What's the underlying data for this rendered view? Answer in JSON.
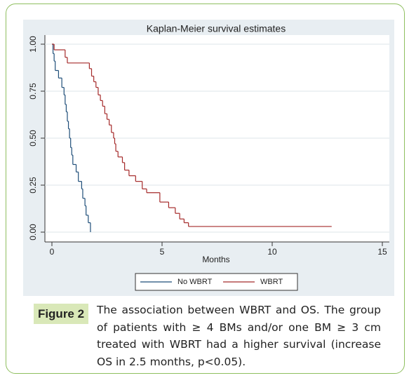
{
  "chart_data": {
    "type": "step",
    "title": "Kaplan-Meier survival estimates",
    "x_label": "Months",
    "xlim": [
      0,
      15
    ],
    "xticks": [
      0,
      5,
      10,
      15
    ],
    "ylim": [
      0,
      1
    ],
    "yticks": [
      {
        "value": 1,
        "label": "1.00"
      },
      0.75,
      {
        "value": 0.5,
        "label": "0.50"
      },
      0.25,
      {
        "value": 0,
        "label": "0.00"
      }
    ],
    "legend": "bottom",
    "series": [
      {
        "name": "No WBRT",
        "color": "#1f4e79",
        "x": [
          0,
          0.05,
          0.1,
          0.15,
          0.3,
          0.45,
          0.55,
          0.6,
          0.65,
          0.7,
          0.75,
          0.8,
          0.85,
          0.9,
          0.95,
          1.1,
          1.2,
          1.35,
          1.4,
          1.5,
          1.55,
          1.65,
          1.75
        ],
        "values": [
          1,
          0.95,
          0.91,
          0.86,
          0.82,
          0.77,
          0.73,
          0.68,
          0.64,
          0.59,
          0.55,
          0.5,
          0.45,
          0.41,
          0.36,
          0.32,
          0.27,
          0.23,
          0.18,
          0.14,
          0.09,
          0.05,
          0
        ]
      },
      {
        "name": "WBRT",
        "color": "#a52a2a",
        "x": [
          0,
          0.1,
          0.6,
          0.7,
          1.7,
          1.8,
          1.9,
          2.0,
          2.1,
          2.2,
          2.3,
          2.4,
          2.5,
          2.6,
          2.7,
          2.8,
          2.85,
          2.9,
          3.0,
          3.2,
          3.3,
          3.5,
          3.8,
          4.1,
          4.3,
          4.9,
          5.3,
          5.6,
          5.8,
          6.0,
          6.2,
          12.7
        ],
        "values": [
          1,
          0.97,
          0.93,
          0.9,
          0.87,
          0.83,
          0.8,
          0.77,
          0.73,
          0.7,
          0.67,
          0.63,
          0.6,
          0.57,
          0.53,
          0.5,
          0.47,
          0.43,
          0.4,
          0.37,
          0.33,
          0.3,
          0.27,
          0.23,
          0.21,
          0.16,
          0.13,
          0.1,
          0.07,
          0.05,
          0.03,
          0.03
        ]
      }
    ]
  },
  "caption": {
    "label": "Figure 2",
    "text": "The association between WBRT and OS. The group of patients with ≥ 4 BMs and/or one BM ≥ 3 cm treated with WBRT had a higher survival (increase OS in 2.5 months, p<0.05)."
  }
}
